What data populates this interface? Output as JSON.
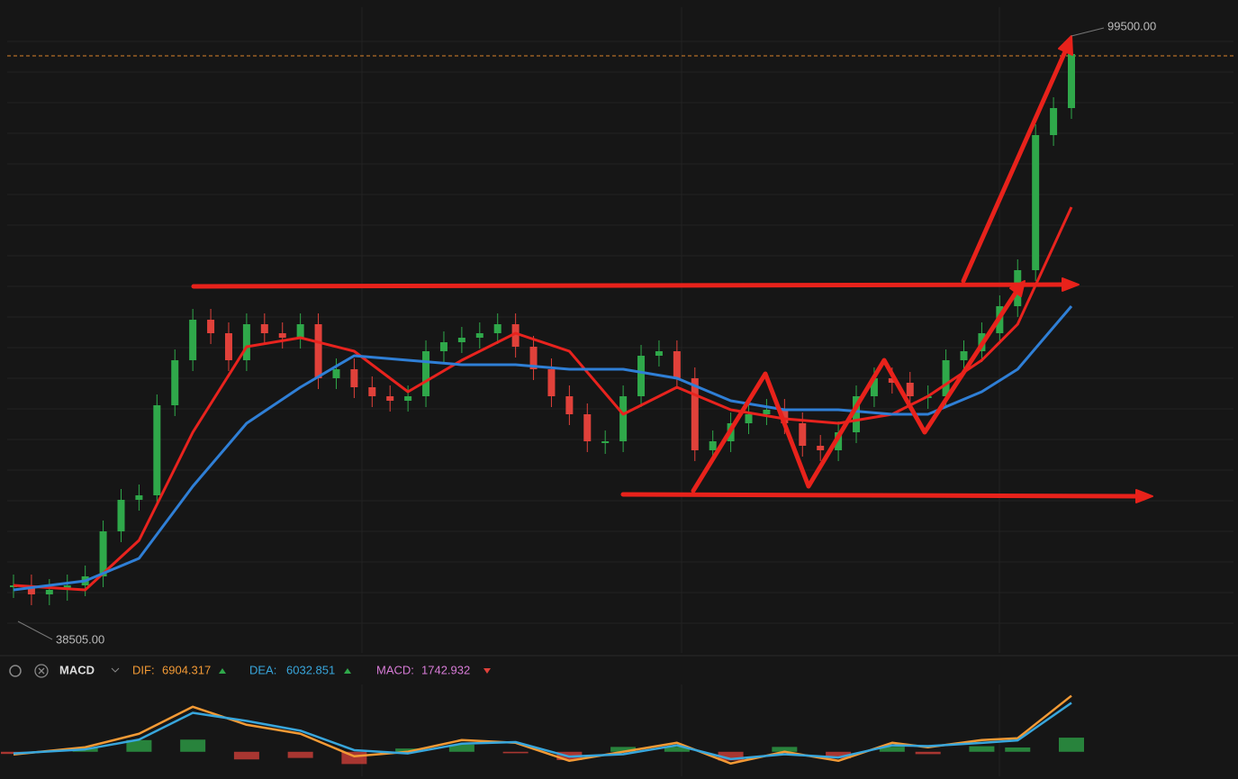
{
  "chart_data": [
    {
      "type": "candlestick",
      "values": [
        42258,
        41320,
        41790,
        42258,
        43197,
        47889,
        51173,
        51643,
        61026,
        65718,
        69941,
        68533,
        65718,
        69472,
        68533,
        68064,
        69472,
        63842,
        64780,
        62903,
        61965,
        61496,
        61965,
        66657,
        67595,
        68064,
        68533,
        69472,
        67126,
        64780,
        61965,
        60088,
        57273,
        57273,
        61965,
        66187,
        66657,
        63842,
        56335,
        57273,
        59150,
        60088,
        60557,
        59150,
        56804,
        56335,
        58211,
        61965,
        63842,
        63372,
        61965,
        61965,
        65718,
        66657,
        68533,
        71349,
        75102,
        89178,
        91993,
        97623
      ],
      "up_color": "#2fa84a",
      "down_color": "#e0413a",
      "ylim": [
        38505,
        99500
      ],
      "series": [
        {
          "color": "#e8231e",
          "x": [
            0,
            4,
            7,
            10,
            13,
            16,
            19,
            22,
            25,
            28,
            31,
            34,
            37,
            40,
            43,
            46,
            49,
            51,
            54,
            56,
            59
          ],
          "values": [
            42258,
            41790,
            46951,
            58211,
            67126,
            68064,
            66657,
            62434,
            65718,
            68533,
            66657,
            60088,
            62903,
            60557,
            59618,
            59150,
            60088,
            61965,
            65718,
            69472,
            81671
          ]
        },
        {
          "color": "#2f7fd6",
          "x": [
            0,
            4,
            7,
            10,
            13,
            16,
            19,
            22,
            25,
            28,
            31,
            34,
            37,
            40,
            43,
            46,
            49,
            51,
            54,
            56,
            59
          ],
          "values": [
            41790,
            42727,
            45073,
            52581,
            59150,
            62903,
            66187,
            65718,
            65249,
            65249,
            64780,
            64780,
            63842,
            61496,
            60557,
            60557,
            60088,
            60088,
            62434,
            64780,
            71349
          ]
        }
      ],
      "annotations": [
        {
          "value": 99500,
          "label": "99500.00"
        },
        {
          "value": 38505,
          "label": "38505.00"
        }
      ]
    },
    {
      "type": "macd",
      "title": "MACD",
      "dif_label": "DIF:",
      "dif": 6904.317,
      "dea_label": "DEA:",
      "dea": 6032.851,
      "macd_label": "MACD:",
      "macd": 1742.932,
      "ylim": [
        -2800,
        8300
      ],
      "x": [
        0,
        4,
        7,
        10,
        13,
        16,
        19,
        22,
        25,
        28,
        31,
        34,
        37,
        40,
        43,
        46,
        49,
        51,
        54,
        56,
        59
      ],
      "series": [
        {
          "color": "#f39a35",
          "values": [
            -333,
            555,
            2220,
            5550,
            3330,
            2220,
            -555,
            0,
            1443,
            1110,
            -1110,
            0,
            1110,
            -1443,
            0,
            -1110,
            1110,
            555,
            1443,
            1665,
            6904
          ]
        },
        {
          "color": "#38a6dc",
          "values": [
            -200,
            300,
            1500,
            4800,
            3800,
            2600,
            200,
            -200,
            1000,
            1200,
            -600,
            -300,
            800,
            -900,
            -300,
            -700,
            800,
            700,
            1100,
            1400,
            6032
          ]
        }
      ],
      "histogram": [
        -266,
        510,
        1440,
        1500,
        -940,
        -760,
        -1510,
        400,
        886,
        -180,
        -1020,
        600,
        620,
        -1086,
        600,
        -820,
        620,
        -290,
        686,
        530,
        1742.932
      ],
      "hist_up_color": "#2fa84a",
      "hist_down_color": "#d9423b"
    }
  ]
}
